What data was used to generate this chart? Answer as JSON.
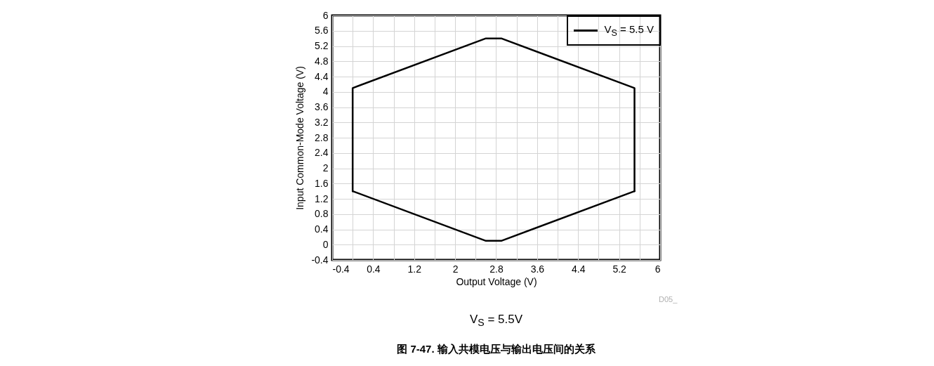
{
  "chart_data": {
    "type": "line",
    "xlabel": "Output Voltage (V)",
    "ylabel": "Input Common-Mode Voltage (V)",
    "xlim": [
      -0.4,
      6
    ],
    "ylim": [
      -0.4,
      6
    ],
    "xticks": [
      -0.4,
      {
        "value": 0,
        "label": null
      },
      0.4,
      {
        "value": 0.8,
        "label": null
      },
      1.2,
      {
        "value": 1.6,
        "label": null
      },
      2,
      {
        "value": 2.4,
        "label": null
      },
      2.8,
      {
        "value": 3.2,
        "label": null
      },
      3.6,
      {
        "value": 4,
        "label": null
      },
      4.4,
      {
        "value": 4.8,
        "label": null
      },
      5.2,
      {
        "value": 5.6,
        "label": null
      },
      6
    ],
    "yticks": [
      -0.4,
      0,
      0.4,
      0.8,
      1.2,
      1.6,
      2,
      2.4,
      2.8,
      3.2,
      3.6,
      4,
      4.4,
      4.8,
      5.2,
      5.6,
      6
    ],
    "grid": true,
    "legend": "top right",
    "line_style": "solid",
    "series": [
      {
        "name": "V$_{S}$ = 5.5 V",
        "color": "#000000",
        "x": [
          0,
          0,
          2.6,
          2.9,
          5.5,
          5.5
        ],
        "values": [
          1.4,
          4.1,
          5.4,
          5.4,
          4.1,
          1.4
        ]
      },
      {
        "color": "#000000",
        "x": [
          0,
          2.6,
          2.9,
          5.5
        ],
        "values": [
          1.4,
          0.1,
          0.1,
          1.4
        ]
      }
    ],
    "annotations": [
      "D05_",
      "V$_{S}$ = 5.5V",
      "图 7-47. 输入共模电压与输出电压间的关系"
    ]
  }
}
